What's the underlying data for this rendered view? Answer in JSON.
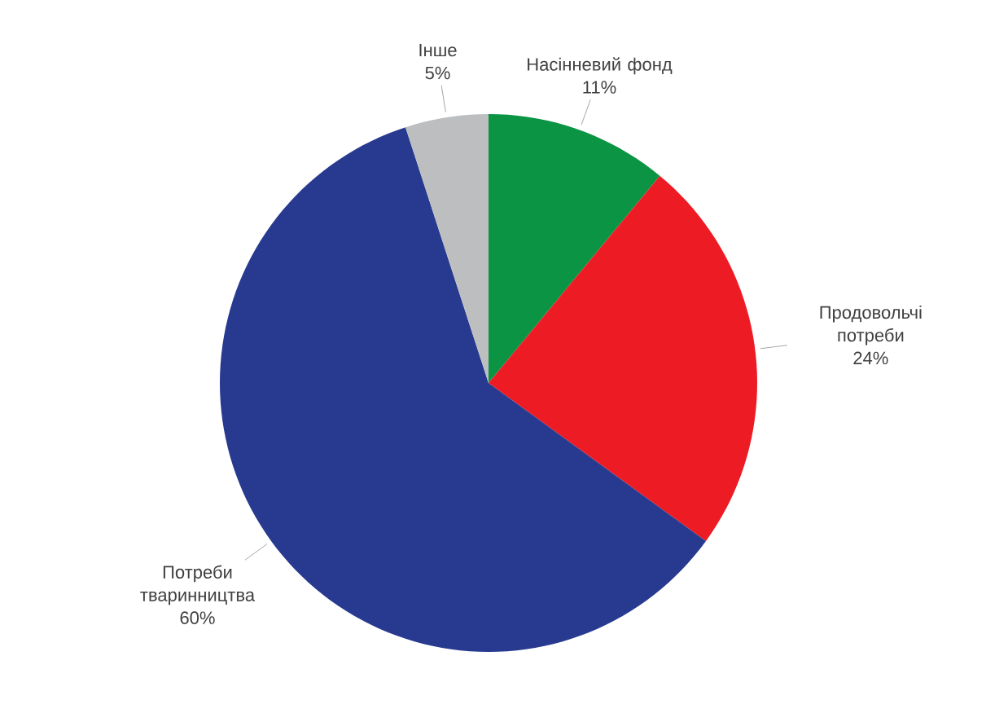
{
  "chart_data": {
    "type": "pie",
    "categories": [
      "Насінневий фонд",
      "Продовольчі потреби",
      "Потреби тваринництва",
      "Інше"
    ],
    "values": [
      11,
      24,
      60,
      5
    ],
    "value_labels": [
      "11%",
      "24%",
      "60%",
      "5%"
    ],
    "colors": [
      "#0a9444",
      "#ed1c24",
      "#283a8f",
      "#bcbec0"
    ]
  }
}
